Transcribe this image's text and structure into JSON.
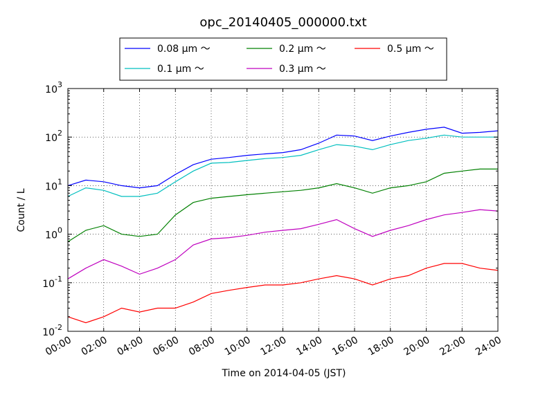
{
  "chart_data": {
    "type": "line",
    "title": "opc_20140405_000000.txt",
    "xlabel": "Time on 2014-04-05 (JST)",
    "ylabel": "Count / L",
    "xlim": [
      "00:00",
      "24:00"
    ],
    "ylim": [
      0.01,
      1000
    ],
    "yscale": "log",
    "grid": true,
    "legend_position": "top-center",
    "x_ticks": [
      "00:00",
      "02:00",
      "04:00",
      "06:00",
      "08:00",
      "10:00",
      "12:00",
      "14:00",
      "16:00",
      "18:00",
      "20:00",
      "22:00",
      "24:00"
    ],
    "y_ticks": [
      {
        "base": "10",
        "exp": "-2",
        "value": 0.01
      },
      {
        "base": "10",
        "exp": "-1",
        "value": 0.1
      },
      {
        "base": "10",
        "exp": "0",
        "value": 1
      },
      {
        "base": "10",
        "exp": "1",
        "value": 10
      },
      {
        "base": "10",
        "exp": "2",
        "value": 100
      },
      {
        "base": "10",
        "exp": "3",
        "value": 1000
      }
    ],
    "x": [
      "00:00",
      "01:00",
      "02:00",
      "03:00",
      "04:00",
      "05:00",
      "06:00",
      "07:00",
      "08:00",
      "09:00",
      "10:00",
      "11:00",
      "12:00",
      "13:00",
      "14:00",
      "15:00",
      "16:00",
      "17:00",
      "18:00",
      "19:00",
      "20:00",
      "21:00",
      "22:00",
      "23:00",
      "24:00"
    ],
    "series": [
      {
        "name": "0.08 μm ～",
        "color": "#0000ff",
        "values": [
          10,
          13,
          12,
          10,
          9,
          10,
          17,
          27,
          35,
          38,
          42,
          45,
          48,
          55,
          75,
          110,
          105,
          85,
          105,
          125,
          145,
          160,
          120,
          125,
          135
        ]
      },
      {
        "name": "0.1 μm ～",
        "color": "#00bfbf",
        "values": [
          6,
          9,
          8,
          6,
          6,
          7,
          12,
          20,
          29,
          30,
          33,
          36,
          38,
          42,
          55,
          70,
          65,
          55,
          70,
          85,
          95,
          110,
          100,
          100,
          100
        ]
      },
      {
        "name": "0.2 μm ～",
        "color": "#008000",
        "values": [
          0.7,
          1.2,
          1.5,
          1.0,
          0.9,
          1.0,
          2.5,
          4.5,
          5.5,
          6.0,
          6.5,
          7.0,
          7.5,
          8.0,
          9.0,
          11.0,
          9.0,
          7.0,
          9.0,
          10.0,
          12.0,
          18.0,
          20.0,
          22.0,
          22.0
        ]
      },
      {
        "name": "0.3 μm ～",
        "color": "#bf00bf",
        "values": [
          0.12,
          0.2,
          0.3,
          0.22,
          0.15,
          0.2,
          0.3,
          0.6,
          0.8,
          0.85,
          0.95,
          1.1,
          1.2,
          1.3,
          1.6,
          2.0,
          1.3,
          0.9,
          1.2,
          1.5,
          2.0,
          2.5,
          2.8,
          3.2,
          3.0
        ]
      },
      {
        "name": "0.5 μm ～",
        "color": "#ff0000",
        "values": [
          0.02,
          0.015,
          0.02,
          0.03,
          0.025,
          0.03,
          0.03,
          0.04,
          0.06,
          0.07,
          0.08,
          0.09,
          0.09,
          0.1,
          0.12,
          0.14,
          0.12,
          0.09,
          0.12,
          0.14,
          0.2,
          0.25,
          0.25,
          0.2,
          0.18
        ]
      }
    ]
  }
}
